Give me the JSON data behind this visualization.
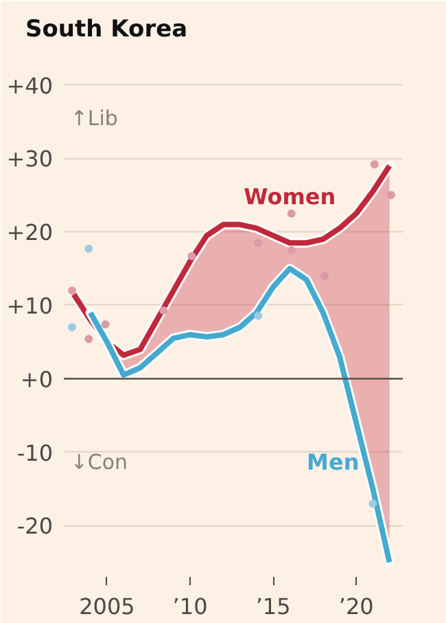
{
  "chart_data": {
    "type": "line",
    "title": "South Korea",
    "x": [
      2003,
      2004,
      2005,
      2006,
      2007,
      2008,
      2009,
      2010,
      2011,
      2012,
      2013,
      2014,
      2015,
      2016,
      2017,
      2018,
      2019,
      2020,
      2021,
      2022
    ],
    "series": [
      {
        "name": "Women",
        "color": "#c0283c",
        "values": [
          11.5,
          8,
          5,
          3.2,
          4,
          8,
          12,
          16,
          19.5,
          21,
          21,
          20.5,
          19.5,
          18.5,
          18.5,
          19,
          20.5,
          22.5,
          25.5,
          29
        ],
        "lower": [
          null,
          9,
          5,
          0.5,
          1.5,
          3.5,
          5.5,
          6,
          5.7,
          6,
          7,
          9,
          12.5,
          15,
          13.5,
          9,
          3,
          -6,
          -15,
          -25
        ],
        "upper": [
          null,
          8,
          5,
          3.2,
          4,
          8,
          12,
          16,
          19.5,
          21,
          21,
          20.5,
          19.5,
          18.5,
          18.5,
          19,
          20.5,
          22.5,
          25.5,
          29
        ]
      },
      {
        "name": "Men",
        "color": "#46a9d0",
        "values": [
          null,
          9,
          5,
          0.5,
          1.5,
          3.5,
          5.5,
          6,
          5.7,
          6,
          7,
          9,
          12.5,
          15,
          13.5,
          9,
          3,
          -6,
          -15,
          -25
        ]
      },
      {
        "type": "scatter",
        "marker": "circle",
        "color": "#dc9aa6",
        "x": [
          2002.9,
          2003.9,
          2004.9,
          2008.4,
          2010.1,
          2014.1,
          2016.1,
          2016.1,
          2018.1,
          2021.1,
          2022.1
        ],
        "values": [
          12,
          5.4,
          7.4,
          9.3,
          16.7,
          18.5,
          22.5,
          17.5,
          14,
          29.2,
          25
        ]
      },
      {
        "type": "scatter",
        "marker": "circle",
        "color": "#9ccbe0",
        "x": [
          2002.9,
          2003.9,
          2014.1,
          2021.0
        ],
        "values": [
          7,
          17.7,
          8.6,
          -17
        ]
      }
    ],
    "annotations": [
      "↑Lib",
      "↓Con"
    ],
    "ylim": [
      -27,
      44
    ],
    "yticks": [
      {
        "value": 40,
        "label": "+40"
      },
      {
        "value": 30,
        "label": "+30"
      },
      {
        "value": 20,
        "label": "+20"
      },
      {
        "value": 10,
        "label": "+10"
      },
      {
        "value": 0,
        "label": "+0"
      },
      {
        "value": -10,
        "label": "-10"
      },
      {
        "value": -20,
        "label": "-20"
      }
    ],
    "xlim": [
      2002.4,
      2022.8
    ],
    "xticks": [
      2005,
      {
        "value": 2010,
        "label": "’10"
      },
      {
        "value": 2015,
        "label": "’15"
      },
      {
        "value": 2020,
        "label": "’20"
      }
    ],
    "grid": "y",
    "marker": "none",
    "line_style": "solid"
  }
}
